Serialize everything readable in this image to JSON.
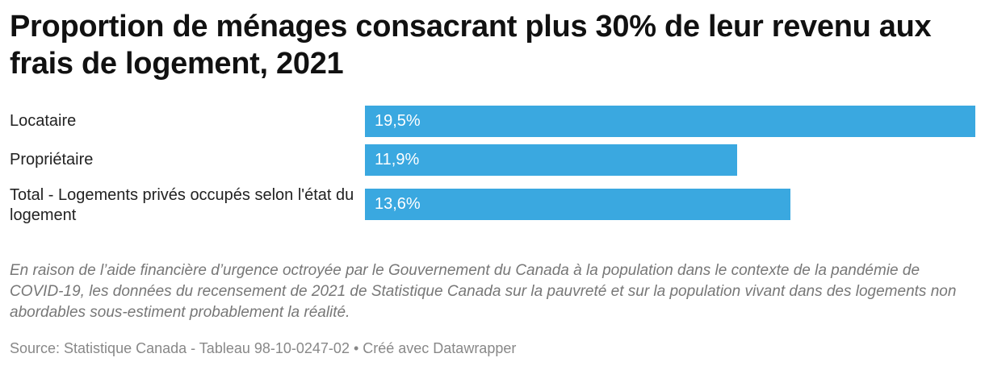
{
  "chart_data": {
    "type": "bar",
    "orientation": "horizontal",
    "title": "Proportion de ménages consacrant plus 30% de leur revenu aux frais de logement, 2021",
    "categories": [
      "Locataire",
      "Propriétaire",
      "Total - Logements privés occupés selon l'état du logement"
    ],
    "values": [
      19.5,
      11.9,
      13.6
    ],
    "value_labels": [
      "19,5%",
      "11,9%",
      "13,6%"
    ],
    "unit": "%",
    "xlim": [
      0,
      19.5
    ],
    "bar_color": "#3aa8e0",
    "grid": false,
    "note": "En raison de l’aide financière d’urgence octroyée par le Gouvernement du Canada à la population dans le contexte de la pandémie de COVID-19, les données du recensement de 2021 de Statistique Canada sur la pauvreté et sur la population vivant dans des logements non abordables sous-estiment probablement la réalité.",
    "source": "Source: Statistique Canada - Tableau 98-10-0247-02 • Créé avec Datawrapper"
  }
}
